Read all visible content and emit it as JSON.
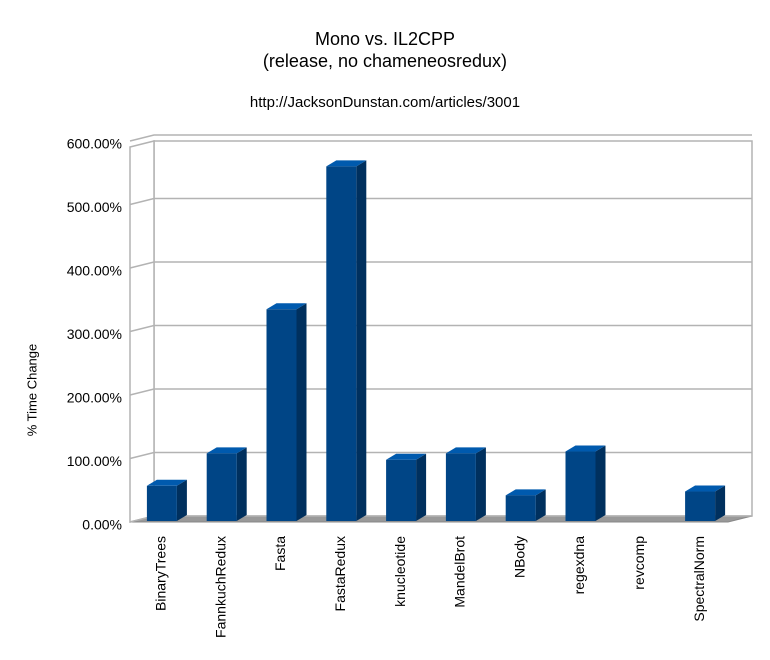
{
  "chart_data": {
    "type": "bar3d",
    "title": "Mono vs. IL2CPP",
    "subtitle": "(release, no chameneosredux)",
    "source": "http://JacksonDunstan.com/articles/3001",
    "y_label": "% Time Change",
    "categories": [
      "BinaryTrees",
      "FannkuchRedux",
      "Fasta",
      "FastaRedux",
      "knucleotide",
      "MandelBrot",
      "NBody",
      "regexdna",
      "revcomp",
      "SpectralNorm"
    ],
    "values": [
      57,
      108,
      335,
      560,
      98,
      108,
      42,
      111,
      0,
      48
    ],
    "color": "#004586",
    "ylim": [
      0,
      600
    ],
    "yticks": [
      {
        "value": 0,
        "label": "0.00%"
      },
      {
        "value": 100,
        "label": "100.00%"
      },
      {
        "value": 200,
        "label": "200.00%"
      },
      {
        "value": 300,
        "label": "300.00%"
      },
      {
        "value": 400,
        "label": "400.00%"
      },
      {
        "value": 500,
        "label": "500.00%"
      },
      {
        "value": 600,
        "label": "600.00%"
      }
    ],
    "grid": true
  }
}
